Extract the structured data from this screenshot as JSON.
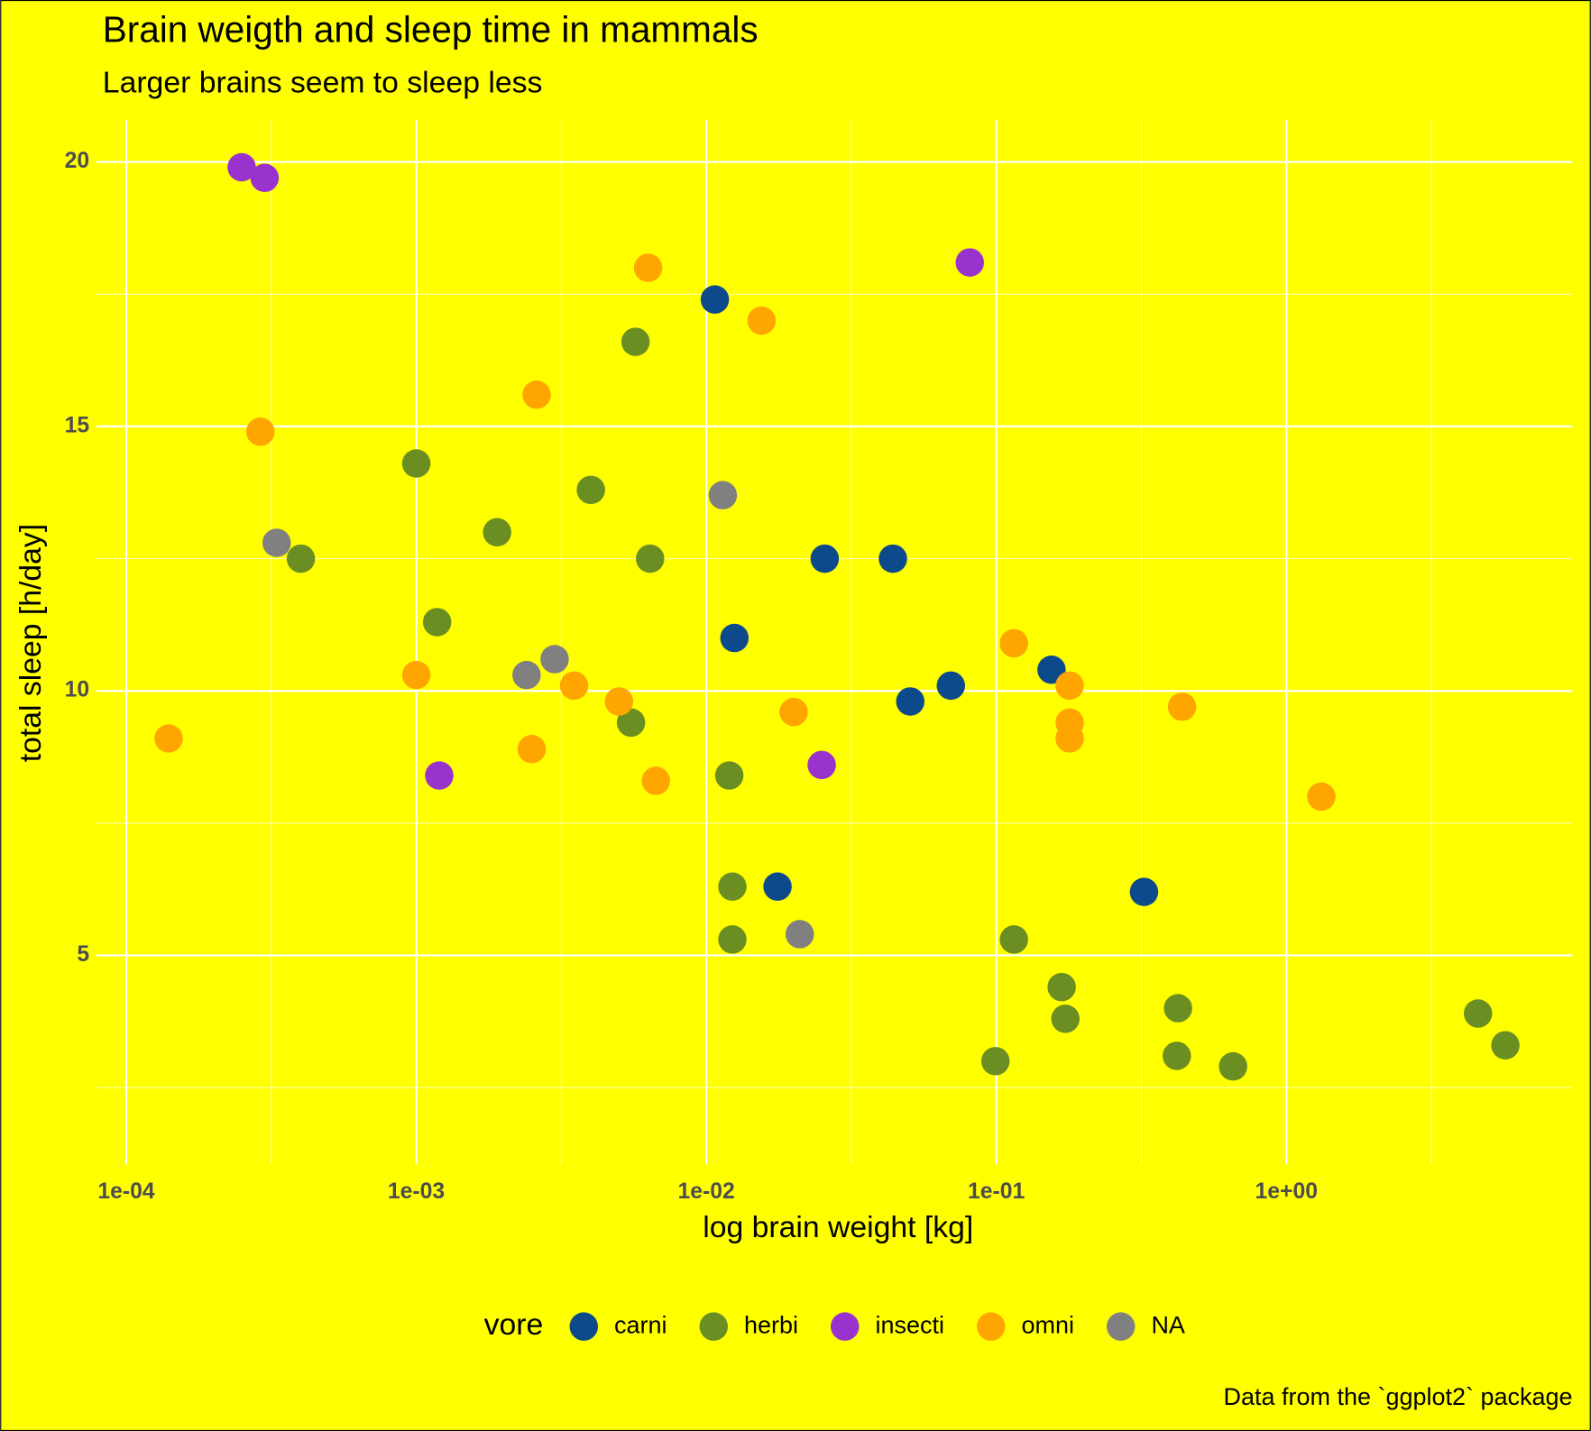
{
  "chart_data": {
    "type": "scatter",
    "title": "Brain weigth and sleep time in mammals",
    "subtitle": "Larger brains seem to sleep less",
    "caption": "Data from the `ggplot2` package",
    "x_label": "log brain weight [kg]",
    "y_label": "total sleep [h/day]",
    "legend_title": "vore",
    "legend_position": "bottom",
    "background": "#ffff00",
    "grid": true,
    "xscale": "log",
    "xlim": [
      7.9e-05,
      9.7
    ],
    "xticks": [
      {
        "value": 0.0001,
        "label": "1e-04"
      },
      {
        "value": 0.001,
        "label": "1e-03"
      },
      {
        "value": 0.01,
        "label": "1e-02"
      },
      {
        "value": 0.1,
        "label": "1e-01"
      },
      {
        "value": 1,
        "label": "1e+00"
      }
    ],
    "ylim": [
      1.05,
      20.8
    ],
    "yticks": [
      5,
      10,
      15,
      20
    ],
    "series": [
      {
        "name": "carni",
        "color": "#0d4a8c",
        "x": [
          0.0107,
          0.0256,
          0.044,
          0.0125,
          0.0697,
          0.0505,
          0.155,
          0.0176,
          0.323
        ],
        "values": [
          17.4,
          12.5,
          12.5,
          11.0,
          10.1,
          9.8,
          10.4,
          6.3,
          6.2
        ]
      },
      {
        "name": "herbi",
        "color": "#6b8e23",
        "x": [
          0.0057,
          0.001,
          0.004,
          0.0019,
          0.0004,
          0.0064,
          0.00118,
          0.0055,
          0.012,
          0.0123,
          0.0123,
          0.115,
          0.168,
          0.173,
          0.423,
          0.419,
          0.0993,
          0.655,
          4.58,
          5.69
        ],
        "values": [
          16.6,
          14.3,
          13.8,
          13.0,
          12.5,
          12.5,
          11.3,
          9.4,
          8.4,
          6.3,
          5.3,
          5.3,
          4.4,
          3.8,
          4.0,
          3.1,
          3.0,
          2.9,
          3.9,
          3.3
        ]
      },
      {
        "name": "insecti",
        "color": "#9a32cd",
        "x": [
          0.00025,
          0.0003,
          0.081,
          0.0012,
          0.025
        ],
        "values": [
          19.9,
          19.7,
          18.1,
          8.4,
          8.6
        ]
      },
      {
        "name": "omni",
        "color": "#ffa500",
        "x": [
          0.0063,
          0.0155,
          0.0026,
          0.00029,
          0.115,
          0.001,
          0.0035,
          0.005,
          0.179,
          0.179,
          0.179,
          0.437,
          0.02,
          0.00014,
          0.0025,
          0.0067,
          1.32
        ],
        "values": [
          18.0,
          17.0,
          15.6,
          14.9,
          10.9,
          10.3,
          10.1,
          9.8,
          10.1,
          9.4,
          9.1,
          9.7,
          9.6,
          9.1,
          8.9,
          8.3,
          8.0
        ]
      },
      {
        "name": "NA",
        "color": "#808080",
        "x": [
          0.00033,
          0.0114,
          0.003,
          0.0024,
          0.021
        ],
        "values": [
          12.8,
          13.7,
          10.6,
          10.3,
          5.4
        ]
      }
    ]
  }
}
